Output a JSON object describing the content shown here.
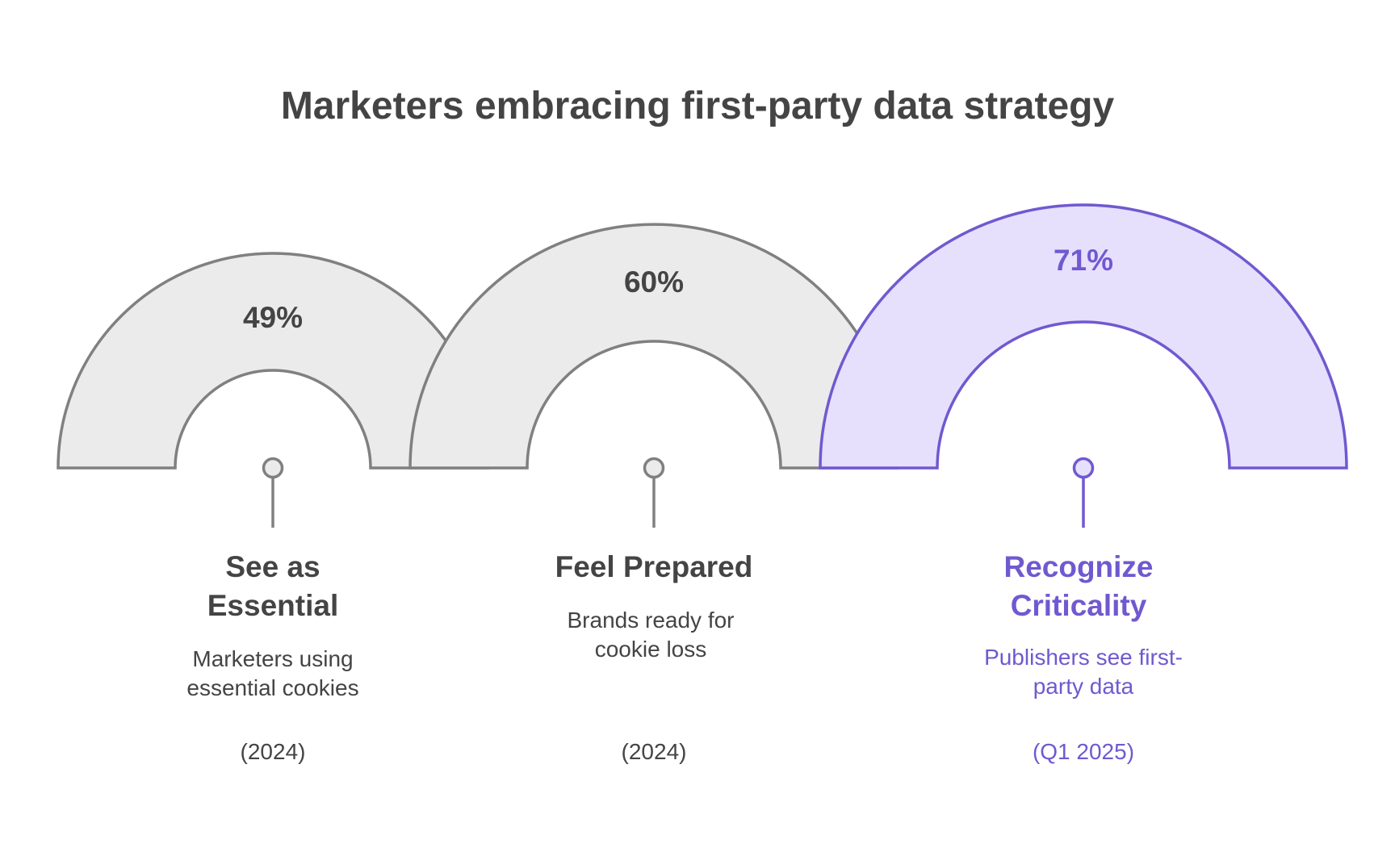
{
  "title": "Marketers embracing first-party data strategy",
  "colors": {
    "neutral_fill": "#ebebeb",
    "neutral_stroke": "#808080",
    "neutral_text": "#444444",
    "accent_fill": "#e6e0fd",
    "accent_stroke": "#7059d0",
    "accent_text": "#7059d0"
  },
  "items": [
    {
      "value": "49%",
      "percent": 49,
      "heading_lines": [
        "See as",
        "Essential"
      ],
      "description_lines": [
        "Marketers using",
        "essential cookies"
      ],
      "year": "(2024)",
      "highlight": false
    },
    {
      "value": "60%",
      "percent": 60,
      "heading_lines": [
        "Feel Prepared"
      ],
      "description_lines": [
        "Brands ready for",
        "cookie loss"
      ],
      "year": "(2024)",
      "highlight": false
    },
    {
      "value": "71%",
      "percent": 71,
      "heading_lines": [
        "Recognize",
        "Criticality"
      ],
      "description_lines": [
        "Publishers see first-",
        "party data"
      ],
      "year": "(Q1 2025)",
      "highlight": true
    }
  ]
}
